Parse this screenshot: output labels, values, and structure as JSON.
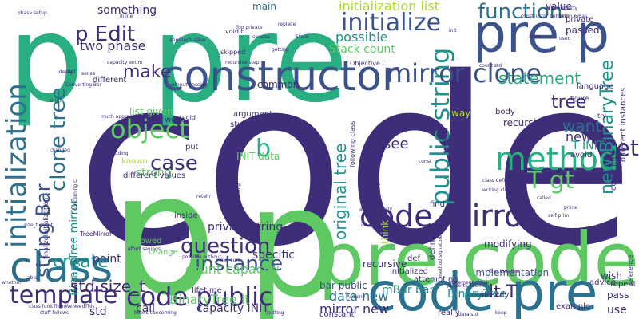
{
  "palette": {
    "background": "#ffffff",
    "dark_purple": "#3e2d78",
    "indigo": "#3b528b",
    "blue": "#2c728e",
    "teal": "#21918c",
    "green_teal": "#28ae80",
    "green": "#5ec962",
    "lime": "#addc30",
    "yellow": "#e2e418",
    "violet": "#440154"
  },
  "words": [
    {
      "text": "code",
      "color": "#3e2d78",
      "vertical": false
    },
    {
      "text": "p",
      "color": "#28ae80",
      "vertical": false
    },
    {
      "text": "pre",
      "color": "#28ae80",
      "vertical": false
    },
    {
      "text": "p",
      "color": "#5ec962",
      "vertical": false
    },
    {
      "text": "p",
      "color": "#5ec962",
      "vertical": false
    },
    {
      "text": "pre code",
      "color": "#5ec962",
      "vertical": false
    },
    {
      "text": "code pre",
      "color": "#2c728e",
      "vertical": false
    },
    {
      "text": "pre p",
      "color": "#3b528b",
      "vertical": false
    },
    {
      "text": "constructor",
      "color": "#3b528b",
      "vertical": false
    },
    {
      "text": "initialization",
      "color": "#2c728e",
      "vertical": true
    },
    {
      "text": "class",
      "color": "#2c728e",
      "vertical": false
    },
    {
      "text": "code mirror",
      "color": "#3e2d78",
      "vertical": false
    },
    {
      "text": "method",
      "color": "#28ae80",
      "vertical": false
    },
    {
      "text": "public string",
      "color": "#21918c",
      "vertical": true
    },
    {
      "text": "mirror clone",
      "color": "#3b528b",
      "vertical": false
    },
    {
      "text": "initialize",
      "color": "#3b528b",
      "vertical": false
    },
    {
      "text": "object",
      "color": "#5ec962",
      "vertical": false
    },
    {
      "text": "clone tree",
      "color": "#2c728e",
      "vertical": true
    },
    {
      "text": "code public",
      "color": "#3e2d78",
      "vertical": false
    },
    {
      "text": "template",
      "color": "#3e2d78",
      "vertical": false
    },
    {
      "text": "question",
      "color": "#3e2d78",
      "vertical": false
    },
    {
      "text": "instance",
      "color": "#3b528b",
      "vertical": false
    },
    {
      "text": "string Bar",
      "color": "#3b528b",
      "vertical": true
    },
    {
      "text": "make",
      "color": "#3e2d78",
      "vertical": false
    },
    {
      "text": "case",
      "color": "#3e2d78",
      "vertical": false
    },
    {
      "text": "b",
      "color": "#28ae80",
      "vertical": false
    },
    {
      "text": "statement",
      "color": "#28ae80",
      "vertical": false
    },
    {
      "text": "function",
      "color": "#2c728e",
      "vertical": false
    },
    {
      "text": "p Edit",
      "color": "#3e2d78",
      "vertical": false
    },
    {
      "text": "T gt",
      "color": "#5ec962",
      "vertical": false
    },
    {
      "text": "want",
      "color": "#2c728e",
      "vertical": false
    },
    {
      "text": "set",
      "color": "#3e2d78",
      "vertical": false
    },
    {
      "text": "tree",
      "color": "#3e2d78",
      "vertical": false
    },
    {
      "text": "new BinaryTree",
      "color": "#21918c",
      "vertical": true
    },
    {
      "text": "BinaryTree mirror",
      "color": "#21918c",
      "vertical": true
    },
    {
      "text": "original tree",
      "color": "#21918c",
      "vertical": true
    },
    {
      "text": "create",
      "color": "#21918c",
      "vertical": false
    },
    {
      "text": "std size_t",
      "color": "#3e2d78",
      "vertical": false
    },
    {
      "text": "initialization list",
      "color": "#addc30",
      "vertical": false
    },
    {
      "text": "Stack count",
      "color": "#5ec962",
      "vertical": false
    },
    {
      "text": "count capacity",
      "color": "#5ec962",
      "vertical": false
    },
    {
      "text": "BinaryTree lt",
      "color": "#5ec962",
      "vertical": false
    },
    {
      "text": "two phase",
      "color": "#3e2d78",
      "vertical": false
    },
    {
      "text": "possible",
      "color": "#21918c",
      "vertical": false
    },
    {
      "text": "capacity INIT",
      "color": "#3e2d78",
      "vertical": false
    },
    {
      "text": "mirror new",
      "color": "#3e2d78",
      "vertical": false
    },
    {
      "text": "lt T",
      "color": "#3e2d78",
      "vertical": false
    },
    {
      "text": "data new",
      "color": "#2c728e",
      "vertical": false
    },
    {
      "text": "mBar bar",
      "color": "#21918c",
      "vertical": false
    },
    {
      "text": "BinaryTree",
      "color": "#21918c",
      "vertical": false
    },
    {
      "text": "private string",
      "color": "#3e2d78",
      "vertical": false
    },
    {
      "text": "specific",
      "color": "#3e2d78",
      "vertical": false
    },
    {
      "text": "something",
      "color": "#3e2d78",
      "vertical": false
    },
    {
      "text": "new T",
      "color": "#3e2d78",
      "vertical": false
    },
    {
      "text": "T INIT",
      "color": "#21918c",
      "vertical": false
    },
    {
      "text": "value",
      "color": "#3e2d78",
      "vertical": false
    },
    {
      "text": "see",
      "color": "#3e2d78",
      "vertical": false
    },
    {
      "text": "point",
      "color": "#3e2d78",
      "vertical": false
    },
    {
      "text": "list given",
      "color": "#5ec962",
      "vertical": false
    },
    {
      "text": "strong",
      "color": "#5ec962",
      "vertical": false
    },
    {
      "text": "INIT data",
      "color": "#5ec962",
      "vertical": false
    },
    {
      "text": "std",
      "color": "#3e2d78",
      "vertical": false
    },
    {
      "text": "bar public",
      "color": "#3b528b",
      "vertical": false
    },
    {
      "text": "implementation",
      "color": "#3b528b",
      "vertical": false
    },
    {
      "text": "recursive",
      "color": "#3e2d78",
      "vertical": false
    },
    {
      "text": "modifying",
      "color": "#3e2d78",
      "vertical": false
    },
    {
      "text": "call",
      "color": "#3e2d78",
      "vertical": false
    },
    {
      "text": "use",
      "color": "#3e2d78",
      "vertical": false
    },
    {
      "text": "way",
      "color": "#addc30",
      "vertical": false
    },
    {
      "text": "main",
      "color": "#2c728e",
      "vertical": false
    },
    {
      "text": "wish",
      "color": "#3e2d78",
      "vertical": false
    },
    {
      "text": "pass",
      "color": "#3e2d78",
      "vertical": false
    },
    {
      "text": "think",
      "color": "#addc30",
      "vertical": true
    },
    {
      "text": "defining",
      "color": "#3e2d78",
      "vertical": true
    },
    {
      "text": "passed",
      "color": "#3e2d78",
      "vertical": false
    },
    {
      "text": "recursively",
      "color": "#3e2d78",
      "vertical": false
    },
    {
      "text": "private",
      "color": "#3e2d78",
      "vertical": false
    },
    {
      "text": "language",
      "color": "#3e2d78",
      "vertical": false
    },
    {
      "text": "body",
      "color": "#3e2d78",
      "vertical": false
    },
    {
      "text": "avoid",
      "color": "#3e2d78",
      "vertical": false
    },
    {
      "text": "argument",
      "color": "#3e2d78",
      "vertical": false
    },
    {
      "text": "common",
      "color": "#3e2d78",
      "vertical": false
    },
    {
      "text": "stuff",
      "color": "#3e2d78",
      "vertical": false
    },
    {
      "text": "part",
      "color": "#3e2d78",
      "vertical": false
    },
    {
      "text": "work",
      "color": "#3e2d78",
      "vertical": false
    },
    {
      "text": "put",
      "color": "#3e2d78",
      "vertical": false
    },
    {
      "text": "inside",
      "color": "#3e2d78",
      "vertical": false
    },
    {
      "text": "change",
      "color": "#5ec962",
      "vertical": false
    },
    {
      "text": "allowed",
      "color": "#5ec962",
      "vertical": false
    },
    {
      "text": "known",
      "color": "#addc30",
      "vertical": false
    },
    {
      "text": "different values",
      "color": "#3e2d78",
      "vertical": false
    },
    {
      "text": "find",
      "color": "#3e2d78",
      "vertical": false
    },
    {
      "text": "def",
      "color": "#3e2d78",
      "vertical": false
    },
    {
      "text": "initialized",
      "color": "#3e2d78",
      "vertical": false
    },
    {
      "text": "already",
      "color": "#3e2d78",
      "vertical": false
    },
    {
      "text": "example",
      "color": "#3e2d78",
      "vertical": false
    },
    {
      "text": "really",
      "color": "#3e2d78",
      "vertical": false
    },
    {
      "text": "constant",
      "color": "#3e2d78",
      "vertical": false
    },
    {
      "text": "advice",
      "color": "#3e2d78",
      "vertical": false
    },
    {
      "text": "repeat",
      "color": "#3e2d78",
      "vertical": false
    },
    {
      "text": "attempting",
      "color": "#3e2d78",
      "vertical": false
    },
    {
      "text": "reference",
      "color": "#3e2d78",
      "vertical": true
    },
    {
      "text": "lifetime",
      "color": "#3e2d78",
      "vertical": false
    },
    {
      "text": "different",
      "color": "#3e2d78",
      "vertical": false
    },
    {
      "text": "different instances",
      "color": "#3e2d78",
      "vertical": true
    },
    {
      "text": "const int",
      "color": "#3e2d78",
      "vertical": true
    },
    {
      "text": "string mBar",
      "color": "#3e2d78",
      "vertical": true
    },
    {
      "text": "following class",
      "color": "#3e2d78",
      "vertical": true
    },
    {
      "text": "Objective C",
      "color": "#3e2d78",
      "vertical": false
    },
    {
      "text": "finalizeInitialization",
      "color": "#3e2d78",
      "vertical": true
    },
    {
      "text": "TreeMirror",
      "color": "#3e2d78",
      "vertical": false
    },
    {
      "text": "void b",
      "color": "#3e2d78",
      "vertical": false
    },
    {
      "text": "void",
      "color": "#3e2d78",
      "vertical": false
    },
    {
      "text": "skipped",
      "color": "#3e2d78",
      "vertical": false
    },
    {
      "text": "figure",
      "color": "#3e2d78",
      "vertical": false
    },
    {
      "text": "try",
      "color": "#3e2d78",
      "vertical": false
    },
    {
      "text": "enum INIT",
      "color": "#3e2d78",
      "vertical": false
    },
    {
      "text": "size_t count",
      "color": "#3e2d78",
      "vertical": false
    },
    {
      "text": "ideally",
      "color": "#3e2d78",
      "vertical": false
    },
    {
      "text": "inline",
      "color": "#3e2d78",
      "vertical": false
    },
    {
      "text": "replace",
      "color": "#3e2d78",
      "vertical": false
    },
    {
      "text": "init",
      "color": "#3e2d78",
      "vertical": false
    },
    {
      "text": "static",
      "color": "#3e2d78",
      "vertical": false
    },
    {
      "text": "used",
      "color": "#3e2d78",
      "vertical": false
    },
    {
      "text": "return mBar",
      "color": "#3e2d78",
      "vertical": false
    },
    {
      "text": "constructor behavior",
      "color": "#3e2d78",
      "vertical": false
    },
    {
      "text": "foo private",
      "color": "#3e2d78",
      "vertical": false
    },
    {
      "text": "concise",
      "color": "#3e2d78",
      "vertical": false
    },
    {
      "text": "Stack",
      "color": "#3e2d78",
      "vertical": false
    },
    {
      "text": "recursive step",
      "color": "#3e2d78",
      "vertical": false
    },
    {
      "text": "capacity enum",
      "color": "#3e2d78",
      "vertical": false
    },
    {
      "text": "without passing",
      "color": "#3e2d78",
      "vertical": false
    },
    {
      "text": "Converting Bar",
      "color": "#3e2d78",
      "vertical": false
    },
    {
      "text": "much appreciated",
      "color": "#3e2d78",
      "vertical": false
    },
    {
      "text": "make sure",
      "color": "#3e2d78",
      "vertical": false
    },
    {
      "text": "possible without",
      "color": "#3e2d78",
      "vertical": false
    },
    {
      "text": "statement check",
      "color": "#3e2d78",
      "vertical": false
    },
    {
      "text": "first iteration",
      "color": "#3e2d78",
      "vertical": false
    },
    {
      "text": "class definition",
      "color": "#3e2d78",
      "vertical": false
    },
    {
      "text": "writing classes",
      "color": "#3e2d78",
      "vertical": false
    },
    {
      "text": "called",
      "color": "#3e2d78",
      "vertical": false
    },
    {
      "text": "self prim",
      "color": "#3e2d78",
      "vertical": false
    },
    {
      "text": "concerning C",
      "color": "#3e2d78",
      "vertical": true
    },
    {
      "text": "changed",
      "color": "#3e2d78",
      "vertical": false
    },
    {
      "text": "adding",
      "color": "#3e2d78",
      "vertical": false
    },
    {
      "text": "effort savings",
      "color": "#3e2d78",
      "vertical": false
    },
    {
      "text": "whether",
      "color": "#3e2d78",
      "vertical": false
    },
    {
      "text": "able",
      "color": "#3e2d78",
      "vertical": false
    },
    {
      "text": "stuff follows",
      "color": "#3e2d78",
      "vertical": false
    },
    {
      "text": "books concerning",
      "color": "#3e2d78",
      "vertical": false
    },
    {
      "text": "putting",
      "color": "#3e2d78",
      "vertical": false
    },
    {
      "text": "Arduino",
      "color": "#3e2d78",
      "vertical": false
    },
    {
      "text": "data std",
      "color": "#3e2d78",
      "vertical": false
    },
    {
      "text": "seems convenient",
      "color": "#3e2d78",
      "vertical": true
    },
    {
      "text": "int b",
      "color": "#3e2d78",
      "vertical": false
    },
    {
      "text": "automatically",
      "color": "#3e2d78",
      "vertical": false
    },
    {
      "text": "retain",
      "color": "#3e2d78",
      "vertical": false
    },
    {
      "text": "const",
      "color": "#3e2d78",
      "vertical": false
    },
    {
      "text": "without adding",
      "color": "#3e2d78",
      "vertical": true
    },
    {
      "text": "getting",
      "color": "#3e2d78",
      "vertical": false
    },
    {
      "text": "sense",
      "color": "#3e2d78",
      "vertical": false
    },
    {
      "text": "self",
      "color": "#3e2d78",
      "vertical": false
    },
    {
      "text": "wondering",
      "color": "#3e2d78",
      "vertical": true
    },
    {
      "text": "gt TreeMirror",
      "color": "#3e2d78",
      "vertical": true
    },
    {
      "text": "count std",
      "color": "#3e2d78",
      "vertical": false
    },
    {
      "text": "auto property",
      "color": "#3e2d78",
      "vertical": false
    },
    {
      "text": "property seems",
      "color": "#3e2d78",
      "vertical": false
    },
    {
      "text": "prime",
      "color": "#3e2d78",
      "vertical": false
    },
    {
      "text": "keep",
      "color": "#3e2d78",
      "vertical": false
    },
    {
      "text": "single",
      "color": "#3e2d78",
      "vertical": false
    },
    {
      "text": "method signature",
      "color": "#3e2d78",
      "vertical": true
    },
    {
      "text": "phase setup",
      "color": "#3e2d78",
      "vertical": false
    },
    {
      "text": "class fooItThenWeNeedThis",
      "color": "#3e2d78",
      "vertical": false
    },
    {
      "text": "approach allow",
      "color": "#3e2d78",
      "vertical": false
    }
  ]
}
